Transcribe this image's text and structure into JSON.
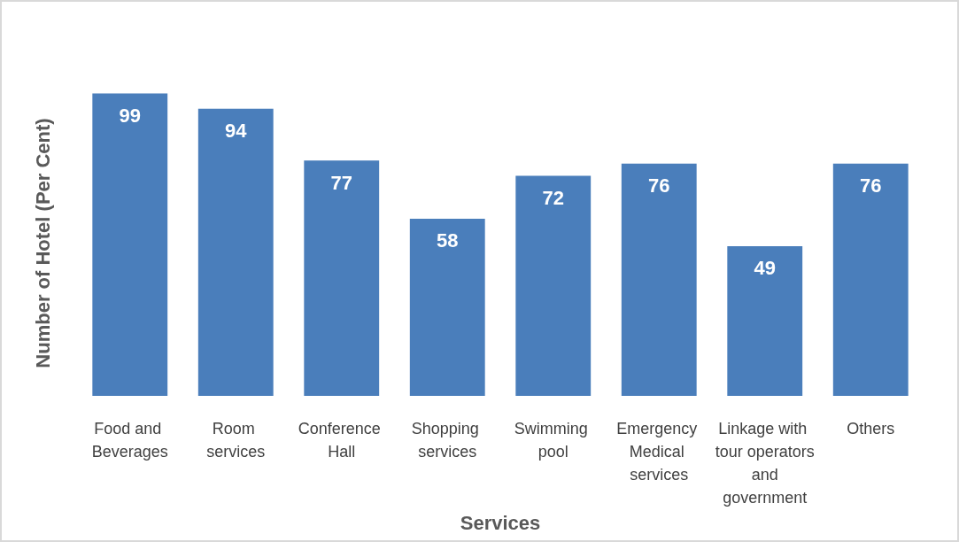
{
  "chart_data": {
    "type": "bar",
    "xlabel": "Services",
    "ylabel": "Number of Hotel (Per Cent)",
    "categories": [
      "Food and Beverages",
      "Room services",
      "Conference Hall",
      "Shopping services",
      "Swimming pool",
      "Emergency Medical services",
      "Linkage with tour operators and government",
      "Others"
    ],
    "values": [
      99,
      94,
      77,
      58,
      72,
      76,
      49,
      76
    ],
    "color": "#4a7ebb",
    "data_labels": true
  }
}
